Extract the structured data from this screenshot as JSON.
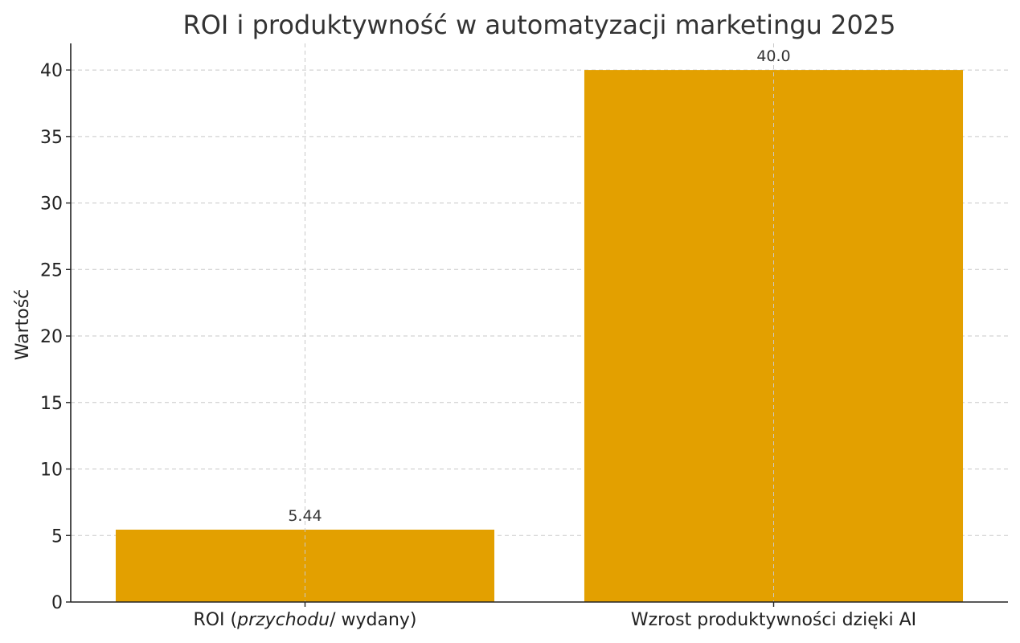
{
  "chart_data": {
    "type": "bar",
    "title": "ROI i produktywność w automatyzacji marketingu 2025",
    "xlabel": "",
    "ylabel": "Wartość",
    "categories": [
      {
        "plain": "ROI (",
        "italic": "przychodu",
        "rest": "/ wydany)"
      },
      {
        "plain": "Wzrost produktywności dzięki AI",
        "italic": "",
        "rest": ""
      }
    ],
    "values": [
      5.44,
      40.0
    ],
    "data_labels": [
      "5.44",
      "40.0"
    ],
    "ylim": [
      0,
      42
    ],
    "yticks": [
      0,
      5,
      10,
      15,
      20,
      25,
      30,
      35,
      40
    ],
    "grid": true,
    "bar_color": "#E3A000"
  }
}
